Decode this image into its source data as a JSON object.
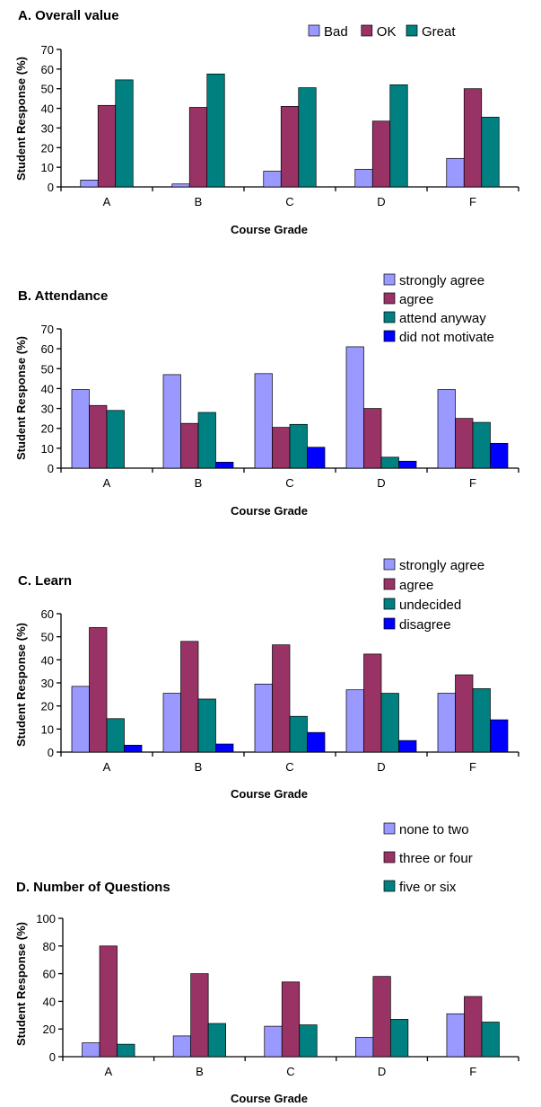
{
  "colors": {
    "light_purple": "#9999ff",
    "maroon": "#993366",
    "teal": "#008080",
    "blue": "#0000ff"
  },
  "chart_data": [
    {
      "type": "bar",
      "title": "A.  Overall value",
      "xlabel": "Course Grade",
      "ylabel": "Student Response (%)",
      "categories": [
        "A",
        "B",
        "C",
        "D",
        "F"
      ],
      "ylim": [
        0,
        70
      ],
      "yticks": [
        0,
        10,
        20,
        30,
        40,
        50,
        60,
        70
      ],
      "legend_position": "top-right-horizontal",
      "series": [
        {
          "name": "Bad",
          "color": "#9999ff",
          "values": [
            3.5,
            1.5,
            8,
            9,
            14.5
          ]
        },
        {
          "name": "OK",
          "color": "#993366",
          "values": [
            41.5,
            40.5,
            41,
            33.5,
            50
          ]
        },
        {
          "name": "Great",
          "color": "#008080",
          "values": [
            54.5,
            57.5,
            50.5,
            52,
            35.5
          ]
        }
      ]
    },
    {
      "type": "bar",
      "title": "B.  Attendance",
      "xlabel": "Course Grade",
      "ylabel": "Student Response (%)",
      "categories": [
        "A",
        "B",
        "C",
        "D",
        "F"
      ],
      "ylim": [
        0,
        70
      ],
      "yticks": [
        0,
        10,
        20,
        30,
        40,
        50,
        60,
        70
      ],
      "legend_position": "top-right",
      "series": [
        {
          "name": "strongly agree",
          "color": "#9999ff",
          "values": [
            39.5,
            47,
            47.5,
            61,
            39.5
          ]
        },
        {
          "name": "agree",
          "color": "#993366",
          "values": [
            31.5,
            22.5,
            20.5,
            30,
            25
          ]
        },
        {
          "name": "attend anyway",
          "color": "#008080",
          "values": [
            29,
            28,
            22,
            5.5,
            23
          ]
        },
        {
          "name": "did not motivate",
          "color": "#0000ff",
          "values": [
            0,
            3,
            10.5,
            3.5,
            12.5
          ]
        }
      ]
    },
    {
      "type": "bar",
      "title": "C.  Learn",
      "xlabel": "Course Grade",
      "ylabel": "Student Response (%)",
      "categories": [
        "A",
        "B",
        "C",
        "D",
        "F"
      ],
      "ylim": [
        0,
        60
      ],
      "yticks": [
        0,
        10,
        20,
        30,
        40,
        50,
        60
      ],
      "legend_position": "top-right",
      "series": [
        {
          "name": "strongly agree",
          "color": "#9999ff",
          "values": [
            28.5,
            25.5,
            29.5,
            27,
            25.5
          ]
        },
        {
          "name": "agree",
          "color": "#993366",
          "values": [
            54,
            48,
            46.5,
            42.5,
            33.5
          ]
        },
        {
          "name": "undecided",
          "color": "#008080",
          "values": [
            14.5,
            23,
            15.5,
            25.5,
            27.5
          ]
        },
        {
          "name": "disagree",
          "color": "#0000ff",
          "values": [
            3,
            3.5,
            8.5,
            5,
            14
          ]
        }
      ]
    },
    {
      "type": "bar",
      "title": "D.  Number of Questions",
      "xlabel": "Course Grade",
      "ylabel": "Student Response (%)",
      "categories": [
        "A",
        "B",
        "C",
        "D",
        "F"
      ],
      "ylim": [
        0,
        100
      ],
      "yticks": [
        0,
        20,
        40,
        60,
        80,
        100
      ],
      "legend_position": "top-right",
      "series": [
        {
          "name": "none to two",
          "color": "#9999ff",
          "values": [
            10,
            15,
            22,
            14,
            31
          ]
        },
        {
          "name": "three or four",
          "color": "#993366",
          "values": [
            80,
            60,
            54,
            58,
            43.5
          ]
        },
        {
          "name": "five or six",
          "color": "#008080",
          "values": [
            9,
            24,
            23,
            27,
            25
          ]
        }
      ]
    }
  ]
}
